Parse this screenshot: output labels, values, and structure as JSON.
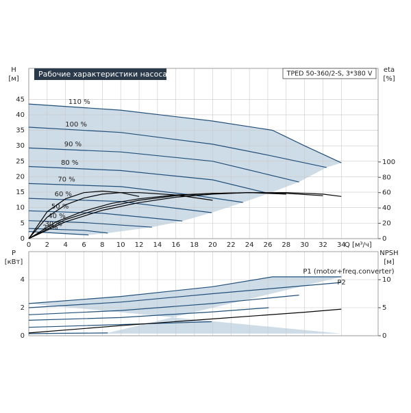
{
  "chart_data": [
    {
      "type": "line",
      "title": "Рабочие характеристики насоса",
      "subtitle": "TPED 50-360/2-S, 3*380 V",
      "ylabel": "H",
      "yunit": "[м]",
      "y2label": "eta",
      "y2unit": "[%]",
      "xlabel": "Q [м³/ч]",
      "xlim": [
        0,
        38
      ],
      "xticks": [
        0,
        2,
        4,
        6,
        8,
        10,
        12,
        14,
        16,
        18,
        20,
        22,
        24,
        26,
        28,
        30,
        32,
        34
      ],
      "ylim": [
        0,
        55
      ],
      "yticks": [
        0,
        5,
        10,
        15,
        20,
        25,
        30,
        35,
        40,
        45
      ],
      "y2lim": [
        0,
        222
      ],
      "y2ticks": [
        0,
        20,
        40,
        60,
        80,
        100
      ],
      "grid": true,
      "envelope_color": "#c9d8e6",
      "series": [
        {
          "name": "110 %",
          "color": "#1f4e79",
          "x": [
            0,
            10,
            20,
            26.5,
            30,
            34
          ],
          "values": [
            43.5,
            41.5,
            38,
            35,
            30,
            24.5
          ]
        },
        {
          "name": "100 %",
          "color": "#1f4e79",
          "x": [
            0,
            10,
            20,
            26,
            32.4
          ],
          "values": [
            36,
            34.3,
            30.5,
            27,
            23
          ]
        },
        {
          "name": "90 %",
          "color": "#1f4e79",
          "x": [
            0,
            10,
            20,
            29.4
          ],
          "values": [
            29.3,
            28,
            25,
            18.3
          ]
        },
        {
          "name": "80 %",
          "color": "#1f4e79",
          "x": [
            0,
            10,
            20,
            26.1
          ],
          "values": [
            23.3,
            22,
            19,
            14.6
          ]
        },
        {
          "name": "70 %",
          "color": "#1f4e79",
          "x": [
            0,
            10,
            18,
            23.3
          ],
          "values": [
            17.8,
            16.8,
            14,
            11.7
          ]
        },
        {
          "name": "60 %",
          "color": "#1f4e79",
          "x": [
            0,
            10,
            19.9
          ],
          "values": [
            13,
            12,
            8.4
          ]
        },
        {
          "name": "50 %",
          "color": "#1f4e79",
          "x": [
            0,
            8,
            16.7
          ],
          "values": [
            9,
            8.2,
            5.7
          ]
        },
        {
          "name": "40 %",
          "color": "#1f4e79",
          "x": [
            0,
            6,
            13.4
          ],
          "values": [
            5.8,
            5.2,
            3.7
          ]
        },
        {
          "name": "30 %",
          "color": "#1f4e79",
          "x": [
            0,
            6,
            8.6
          ],
          "values": [
            3.3,
            2.7,
            1.8
          ]
        },
        {
          "name": "25%",
          "color": "#1f4e79",
          "x": [
            0,
            6.5
          ],
          "values": [
            2.3,
            1.2
          ]
        },
        {
          "axis": "y2",
          "color": "#000000",
          "x": [
            0,
            4,
            8,
            12,
            16,
            20,
            24,
            28,
            32,
            34
          ],
          "values": [
            0,
            25,
            40,
            50,
            56,
            59,
            60,
            60,
            58,
            55
          ]
        },
        {
          "axis": "y2",
          "color": "#000000",
          "x": [
            0,
            4,
            8,
            12,
            16,
            20,
            24,
            28,
            32
          ],
          "values": [
            0,
            22,
            37,
            47,
            54,
            58,
            60,
            59,
            56
          ]
        },
        {
          "axis": "y2",
          "color": "#000000",
          "x": [
            0,
            3,
            6,
            9,
            12,
            16,
            20,
            24,
            28
          ],
          "values": [
            0,
            22,
            36,
            46,
            52,
            57,
            59,
            60,
            58
          ]
        },
        {
          "axis": "y2",
          "color": "#000000",
          "x": [
            0,
            2,
            4,
            6,
            8,
            10,
            12,
            16,
            20
          ],
          "values": [
            0,
            28,
            44,
            53,
            58,
            60,
            60,
            57,
            50
          ]
        },
        {
          "axis": "y2",
          "color": "#000000",
          "x": [
            0,
            2,
            4,
            6,
            8,
            10,
            12
          ],
          "values": [
            0,
            35,
            52,
            60,
            62,
            60,
            55
          ]
        }
      ]
    },
    {
      "type": "line",
      "ylabel": "P",
      "yunit": "[кВт]",
      "y2label": "NPSH",
      "y2unit": "[м]",
      "xlim": [
        0,
        38
      ],
      "xticks": [
        0,
        2,
        4,
        6,
        8,
        10,
        12,
        14,
        16,
        18,
        20,
        22,
        24,
        26,
        28,
        30,
        32,
        34
      ],
      "ylim": [
        0,
        6
      ],
      "yticks": [
        0,
        2,
        4
      ],
      "y2lim": [
        0,
        15
      ],
      "y2ticks": [
        0,
        5,
        10
      ],
      "grid": true,
      "envelope_color": "#c9d8e6",
      "series": [
        {
          "name": "P1 (motor+freq.converter)",
          "color": "#1f4e79",
          "x": [
            0,
            10,
            20,
            26.5,
            34
          ],
          "values": [
            2.3,
            2.8,
            3.5,
            4.2,
            4.2
          ]
        },
        {
          "name": "P2",
          "color": "#1f4e79",
          "x": [
            0,
            10,
            20,
            34
          ],
          "values": [
            2.0,
            2.4,
            3.0,
            3.8
          ]
        },
        {
          "color": "#1f4e79",
          "x": [
            0,
            10,
            20,
            29.4
          ],
          "values": [
            1.5,
            1.8,
            2.3,
            2.9
          ]
        },
        {
          "color": "#1f4e79",
          "x": [
            0,
            10,
            20,
            26.1
          ],
          "values": [
            1.1,
            1.3,
            1.7,
            2.0
          ]
        },
        {
          "color": "#1f4e79",
          "x": [
            0,
            10,
            19.9
          ],
          "values": [
            0.6,
            0.8,
            1.0
          ]
        },
        {
          "color": "#1f4e79",
          "x": [
            0,
            8.6
          ],
          "values": [
            0.15,
            0.2
          ]
        },
        {
          "axis": "y2",
          "color": "#000000",
          "x": [
            0,
            10,
            20,
            30,
            34
          ],
          "values": [
            0.5,
            1.8,
            3,
            4.2,
            4.75
          ]
        }
      ]
    }
  ]
}
